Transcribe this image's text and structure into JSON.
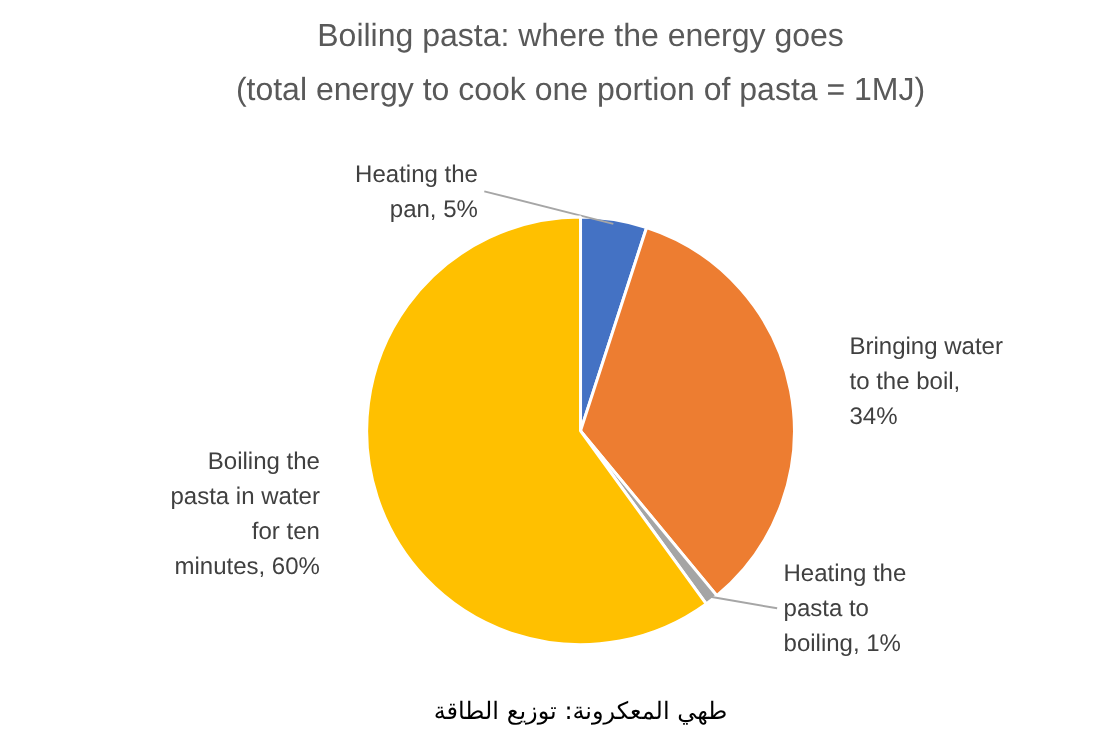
{
  "chart_data": {
    "type": "pie",
    "title": "Boiling pasta: where the energy goes",
    "subtitle": "(total energy to cook one portion of pasta = 1MJ)",
    "categories": [
      "Heating the pan, 5%",
      "Bringing water to the boil, 34%",
      "Heating the pasta to boiling, 1%",
      "Boiling the pasta in water for ten minutes, 60%"
    ],
    "values": [
      5,
      34,
      1,
      60
    ],
    "colors": [
      "#4472c4",
      "#ed7d31",
      "#a5a5a5",
      "#ffc000"
    ],
    "annotations": [
      "طهي المعكرونة: توزيع الطاقة"
    ]
  }
}
